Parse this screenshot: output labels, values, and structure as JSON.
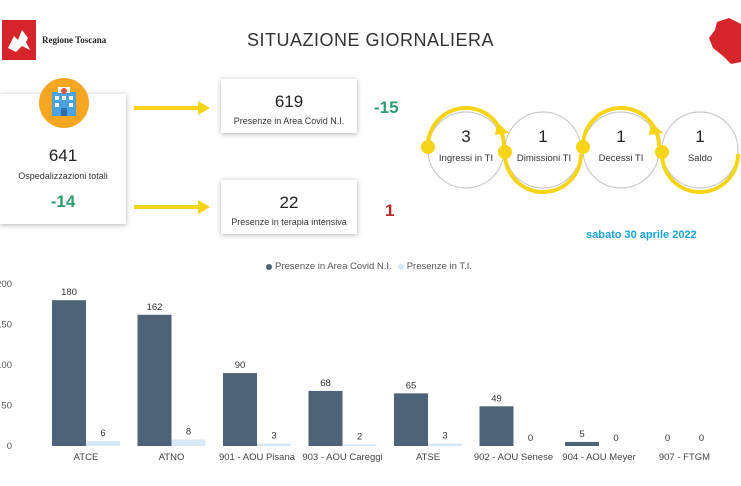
{
  "header": {
    "brand": "Regione Toscana",
    "title": "SITUAZIONE GIORNALIERA"
  },
  "kpis": {
    "total": {
      "value": "641",
      "label": "Ospedalizzazioni totali",
      "delta": "-14"
    },
    "area_covid": {
      "value": "619",
      "label": "Presenze in Area Covid N.I.",
      "delta": "-15"
    },
    "terapia": {
      "value": "22",
      "label": "Presenze in terapia intensiva",
      "delta": "1"
    }
  },
  "flow": [
    {
      "value": "3",
      "label": "Ingressi in TI"
    },
    {
      "value": "1",
      "label": "Dimissioni TI"
    },
    {
      "value": "1",
      "label": "Decessi TI"
    },
    {
      "value": "1",
      "label": "Saldo"
    }
  ],
  "date": "sabato 30 aprile 2022",
  "colors": {
    "series1": "#4e6378",
    "series2": "#d8e8f4",
    "accent_green": "#2e9e6e",
    "accent_red": "#c0272d",
    "flow_yellow": "#f7d417",
    "date_blue": "#1aa3d9"
  },
  "icons": [
    "hospital-icon",
    "tuscany-map-icon",
    "regione-toscana-logo"
  ],
  "chart_data": {
    "type": "bar",
    "categories": [
      "ATCE",
      "ATNO",
      "901 - AOU Pisana",
      "903 - AOU Careggi",
      "ATSE",
      "902 - AOU Senese",
      "904 - AOU Meyer",
      "907 - FTGM"
    ],
    "series": [
      {
        "name": "Presenze in Area Covid N.I.",
        "values": [
          180,
          162,
          90,
          68,
          65,
          49,
          5,
          0
        ]
      },
      {
        "name": "Presenze in T.I.",
        "values": [
          6,
          8,
          3,
          2,
          3,
          0,
          0,
          0
        ]
      }
    ],
    "y_ticks": [
      "200",
      "150",
      "100",
      "50",
      "0"
    ],
    "ylim": [
      0,
      200
    ],
    "legend_position": "top-center",
    "grid": false
  }
}
